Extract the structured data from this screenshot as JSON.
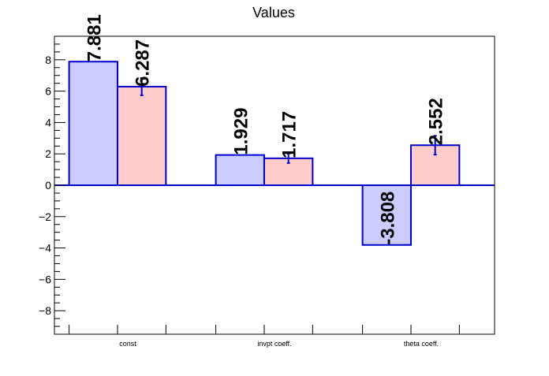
{
  "chart_data": {
    "type": "bar",
    "title": "Values",
    "xlabel": "",
    "ylabel": "",
    "categories": [
      "const",
      "invpt coeff.",
      "theta coeff."
    ],
    "series": [
      {
        "values": [
          7.881,
          1.929,
          -3.808
        ],
        "errors": [
          0,
          0,
          0
        ],
        "fill": "#ccccff",
        "labels": [
          "7.881",
          "1.929",
          "-3.808"
        ]
      },
      {
        "values": [
          6.287,
          1.717,
          2.552
        ],
        "errors": [
          0.55,
          0.3,
          0.6
        ],
        "fill": "#ffcccc",
        "labels": [
          "6.287",
          "1.717",
          "2.552"
        ]
      }
    ],
    "ylim": [
      -9.5,
      9.5
    ],
    "yticks": [
      {
        "value": -8,
        "label": "−8"
      },
      {
        "value": -6,
        "label": "−6"
      },
      {
        "value": -4,
        "label": "−4"
      },
      {
        "value": -2,
        "label": "−2"
      },
      {
        "value": 0,
        "label": "0"
      },
      {
        "value": 2,
        "label": "2"
      },
      {
        "value": 4,
        "label": "4"
      },
      {
        "value": 6,
        "label": "6"
      },
      {
        "value": 8,
        "label": "8"
      }
    ],
    "outline_color": "#0000cc",
    "grid": false,
    "legend": "none"
  }
}
